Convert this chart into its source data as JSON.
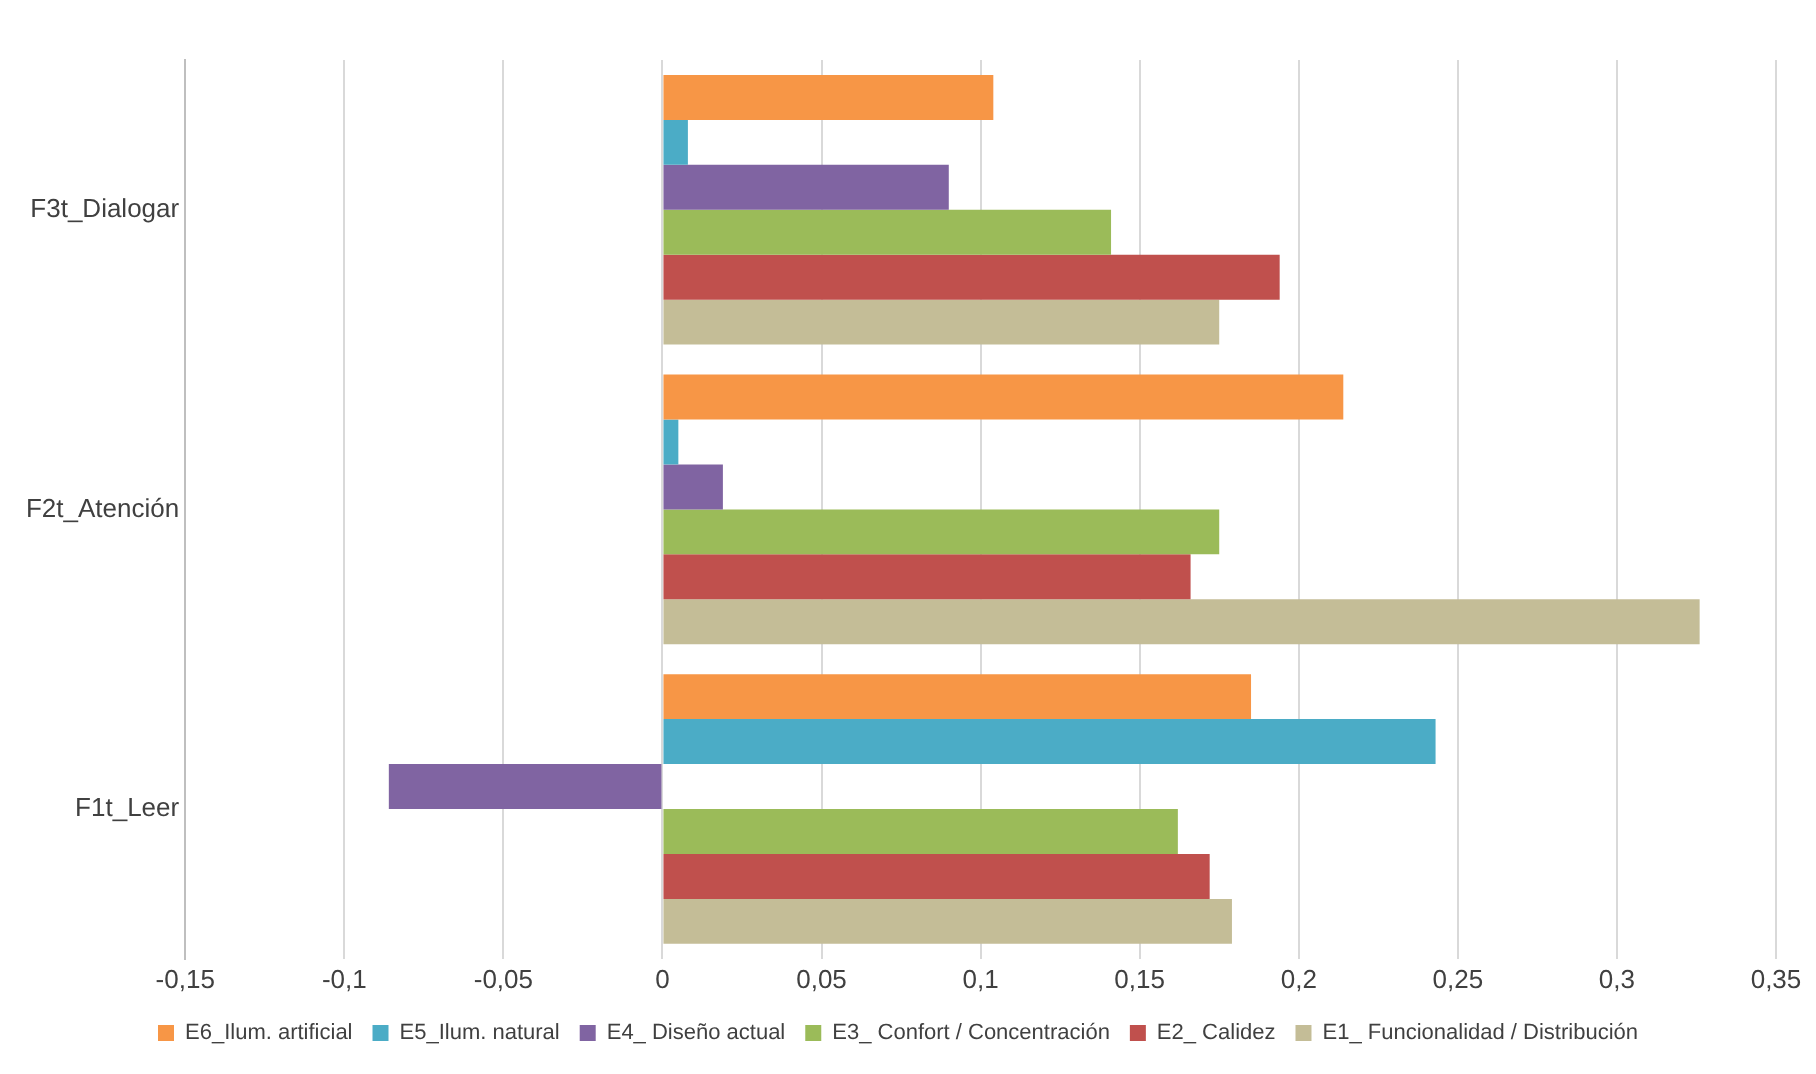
{
  "chart_data": {
    "type": "bar",
    "orientation": "horizontal",
    "categories": [
      "F3t_Dialogar",
      "F2t_Atención",
      "F1t_Leer"
    ],
    "series": [
      {
        "name": "E6_Ilum. artificial",
        "color": "#f79646",
        "values": [
          0.104,
          0.214,
          0.185
        ]
      },
      {
        "name": "E5_Ilum. natural",
        "color": "#4bacc6",
        "values": [
          0.008,
          0.005,
          0.243
        ]
      },
      {
        "name": "E4_ Diseño actual",
        "color": "#8064a2",
        "values": [
          0.09,
          0.019,
          -0.086
        ]
      },
      {
        "name": "E3_ Confort / Concentración",
        "color": "#9bbb59",
        "values": [
          0.141,
          0.175,
          0.162
        ]
      },
      {
        "name": "E2_ Calidez",
        "color": "#c0504d",
        "values": [
          0.194,
          0.166,
          0.172
        ]
      },
      {
        "name": "E1_ Funcionalidad / Distribución",
        "color": "#c4bd97",
        "values": [
          0.175,
          0.326,
          0.179
        ]
      }
    ],
    "xlim": [
      -0.15,
      0.35
    ],
    "xticks": [
      {
        "value": -0.15,
        "label": "-0,15"
      },
      {
        "value": -0.1,
        "label": "-0,1"
      },
      {
        "value": -0.05,
        "label": "-0,05"
      },
      0,
      {
        "value": 0.05,
        "label": "0,05"
      },
      {
        "value": 0.1,
        "label": "0,1"
      },
      {
        "value": 0.15,
        "label": "0,15"
      },
      {
        "value": 0.2,
        "label": "0,2"
      },
      {
        "value": 0.25,
        "label": "0,25"
      },
      {
        "value": 0.3,
        "label": "0,3"
      },
      {
        "value": 0.35,
        "label": "0,35"
      }
    ],
    "grid": "x",
    "legend": "bottom"
  }
}
